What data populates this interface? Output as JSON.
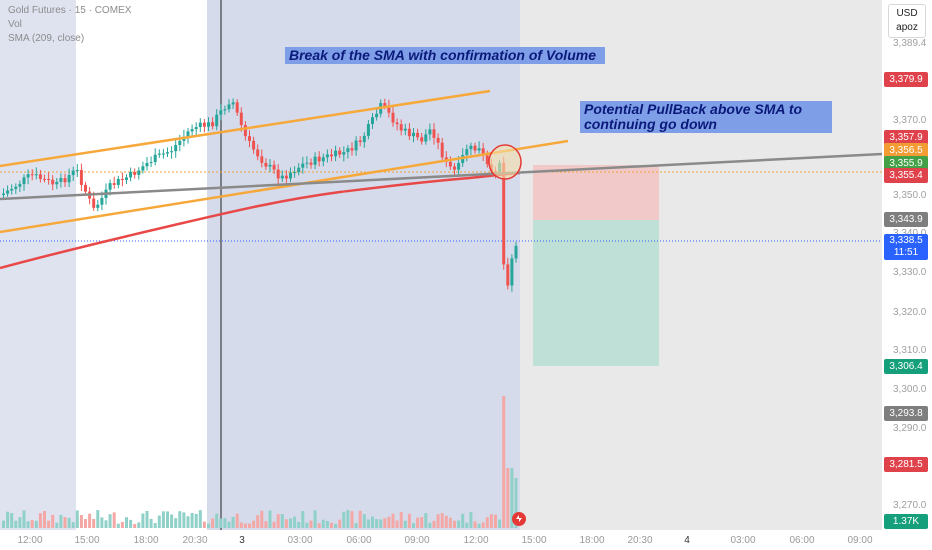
{
  "legend": {
    "symbol": "Gold Futures · 15 · COMEX",
    "vol": "Vol",
    "sma": "SMA (209, close)"
  },
  "currency_box": {
    "currency": "USD",
    "unit": "apoz"
  },
  "annotations": {
    "note1": "Break of the SMA with confirmation of Volume",
    "note2": "Potential PullBack above SMA to continuing go down"
  },
  "price_axis": {
    "ticks": [
      "3,370.0",
      "3,350.0",
      "3,340.0",
      "3,330.0",
      "3,320.0",
      "3,310.0",
      "3,300.0",
      "3,290.0",
      "3,270.0"
    ],
    "top_partial": "3,389.4"
  },
  "price_labels": [
    {
      "text": "3,379.9",
      "color": "#e0424c"
    },
    {
      "text": "3,357.9",
      "color": "#e0424c"
    },
    {
      "text": "3,356.5",
      "color": "#f39c34"
    },
    {
      "text": "3,355.9",
      "color": "#43a047"
    },
    {
      "text": "3,355.4",
      "color": "#e0424c"
    },
    {
      "text": "3,343.9",
      "color": "#7e7e7e"
    },
    {
      "text": "3,338.5",
      "color": "#2962ff",
      "sub": "11:51"
    },
    {
      "text": "3,306.4",
      "color": "#169f7b"
    },
    {
      "text": "3,293.8",
      "color": "#7e7e7e"
    },
    {
      "text": "3,281.5",
      "color": "#e0424c"
    },
    {
      "text": "1.37K",
      "color": "#169f7b"
    }
  ],
  "time_axis": [
    "12:00",
    "15:00",
    "18:00",
    "20:30",
    "3",
    "03:00",
    "06:00",
    "09:00",
    "12:00",
    "15:00",
    "18:00",
    "20:30",
    "4",
    "03:00",
    "06:00",
    "09:00"
  ],
  "colors": {
    "bull": "#26a69a",
    "bear": "#ef5350",
    "sma": "#e84848",
    "channel": "#f7a83b",
    "trendline": "#8a8a8a",
    "session_shade": "#d7dcec",
    "stop_zone": "#f2c9c9",
    "target_zone": "#bfe0d6"
  }
}
